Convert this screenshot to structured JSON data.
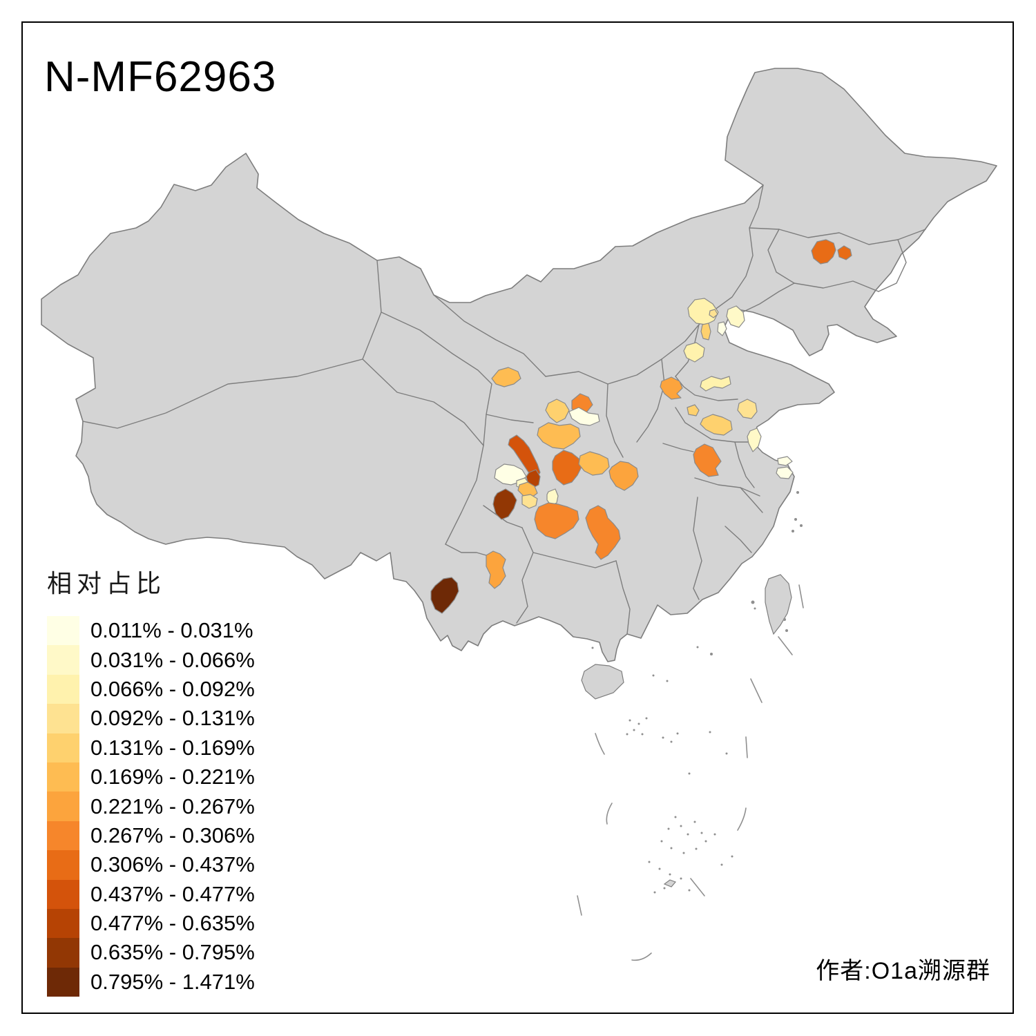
{
  "title": "N-MF62963",
  "attribution": "作者:O1a溯源群",
  "legend": {
    "title": "相对占比",
    "items": [
      {
        "range": "0.011% - 0.031%",
        "color": "#FFFFE5"
      },
      {
        "range": "0.031% - 0.066%",
        "color": "#FFF9C8"
      },
      {
        "range": "0.066% - 0.092%",
        "color": "#FFF2AD"
      },
      {
        "range": "0.092% - 0.131%",
        "color": "#FEE291"
      },
      {
        "range": "0.131% - 0.169%",
        "color": "#FED16E"
      },
      {
        "range": "0.169% - 0.221%",
        "color": "#FEBC52"
      },
      {
        "range": "0.221% - 0.267%",
        "color": "#FCA43D"
      },
      {
        "range": "0.267% - 0.306%",
        "color": "#F6862B"
      },
      {
        "range": "0.306% - 0.437%",
        "color": "#E86C16"
      },
      {
        "range": "0.437% - 0.477%",
        "color": "#D4530B"
      },
      {
        "range": "0.477% - 0.635%",
        "color": "#B64304"
      },
      {
        "range": "0.635% - 0.795%",
        "color": "#923704"
      },
      {
        "range": "0.795% - 1.471%",
        "color": "#6E2906"
      }
    ]
  },
  "map": {
    "background": "#FFFFFF",
    "frame_color": "#000000",
    "land_color": "#D4D4D4",
    "province_border_color": "#7D7D7D",
    "region_border_color": "#8A8A8A",
    "regions": [
      {
        "bucket": 9
      },
      {
        "bucket": 9
      },
      {
        "bucket": 3
      },
      {
        "bucket": 4
      },
      {
        "bucket": 5
      },
      {
        "bucket": 1
      },
      {
        "bucket": 2
      },
      {
        "bucket": 3
      },
      {
        "bucket": 7
      },
      {
        "bucket": 3
      },
      {
        "bucket": 4
      },
      {
        "bucket": 5
      },
      {
        "bucket": 5
      },
      {
        "bucket": 2
      },
      {
        "bucket": 1
      },
      {
        "bucket": 1
      },
      {
        "bucket": 8
      },
      {
        "bucket": 6
      },
      {
        "bucket": 8
      },
      {
        "bucket": 1
      },
      {
        "bucket": 5
      },
      {
        "bucket": 6
      },
      {
        "bucket": 10
      },
      {
        "bucket": 11
      },
      {
        "bucket": 1
      },
      {
        "bucket": 2
      },
      {
        "bucket": 12
      },
      {
        "bucket": 6
      },
      {
        "bucket": 4
      },
      {
        "bucket": 2
      },
      {
        "bucket": 9
      },
      {
        "bucket": 6
      },
      {
        "bucket": 7
      },
      {
        "bucket": 8
      },
      {
        "bucket": 8
      },
      {
        "bucket": 7
      },
      {
        "bucket": 13
      }
    ]
  }
}
